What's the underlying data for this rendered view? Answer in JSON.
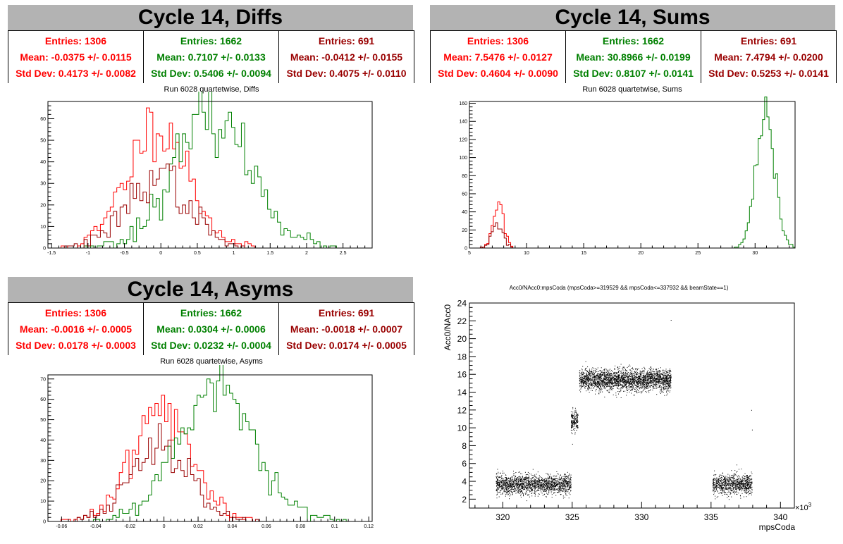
{
  "colors": {
    "red": "#ff0000",
    "green": "#008000",
    "darkred": "#990000",
    "title_bg": "#b3b3b3"
  },
  "panels": {
    "diffs": {
      "title": "Cycle 14, Diffs",
      "subtitle": "Run 6028 quartetwise, Diffs",
      "stats": [
        {
          "entries": "Entries: 1306",
          "mean": "Mean: -0.0375 +/- 0.0115",
          "std": "Std Dev: 0.4173 +/- 0.0082"
        },
        {
          "entries": "Entries: 1662",
          "mean": "Mean: 0.7107 +/- 0.0133",
          "std": "Std Dev: 0.5406 +/- 0.0094"
        },
        {
          "entries": "Entries: 691",
          "mean": "Mean: -0.0412 +/- 0.0155",
          "std": "Std Dev: 0.4075 +/- 0.0110"
        }
      ]
    },
    "sums": {
      "title": "Cycle 14, Sums",
      "subtitle": "Run 6028 quartetwise, Sums",
      "stats": [
        {
          "entries": "Entries: 1306",
          "mean": "Mean: 7.5476 +/- 0.0127",
          "std": "Std Dev: 0.4604 +/- 0.0090"
        },
        {
          "entries": "Entries: 1662",
          "mean": "Mean: 30.8966 +/- 0.0199",
          "std": "Std Dev: 0.8107 +/- 0.0141"
        },
        {
          "entries": "Entries: 691",
          "mean": "Mean: 7.4794 +/- 0.0200",
          "std": "Std Dev: 0.5253 +/- 0.0141"
        }
      ]
    },
    "asyms": {
      "title": "Cycle 14, Asyms",
      "subtitle": "Run 6028 quartetwise, Asyms",
      "stats": [
        {
          "entries": "Entries: 1306",
          "mean": "Mean: -0.0016 +/- 0.0005",
          "std": "Std Dev: 0.0178 +/- 0.0003"
        },
        {
          "entries": "Entries: 1662",
          "mean": "Mean: 0.0304 +/- 0.0006",
          "std": "Std Dev: 0.0232 +/- 0.0004"
        },
        {
          "entries": "Entries: 691",
          "mean": "Mean: -0.0018 +/- 0.0007",
          "std": "Std Dev: 0.0174 +/- 0.0005"
        }
      ]
    },
    "scatter": {
      "title": "Acc0/NAcc0:mpsCoda (mpsCoda>=319529 && mpsCoda<=337932 && beamState==1)",
      "ylabel": "Acc0/NAcc0",
      "xlabel": "mpsCoda",
      "xexp": "×10",
      "xexp_sup": "3"
    }
  },
  "chart_data": [
    {
      "id": "diffs",
      "type": "histogram",
      "title": "Run 6028 quartetwise, Diffs",
      "xlim": [
        -1.55,
        2.9
      ],
      "ylim": [
        0,
        68
      ],
      "xticks": [
        -1.5,
        -1,
        -0.5,
        0,
        0.5,
        1,
        1.5,
        2,
        2.5
      ],
      "xticklabels": [
        "-1.5",
        "-1",
        "-0.5",
        "0",
        "0.5",
        "1",
        "1.5",
        "2",
        "2.5"
      ],
      "yticks": [
        0,
        10,
        20,
        30,
        40,
        50,
        60
      ],
      "series": [
        {
          "color": "red",
          "dist": "gauss",
          "mean": -0.0375,
          "sigma": 0.4173,
          "peak": 58,
          "bin": 0.045,
          "seed": 11
        },
        {
          "color": "green",
          "dist": "gauss",
          "mean": 0.7107,
          "sigma": 0.5406,
          "peak": 60,
          "bin": 0.045,
          "seed": 23
        },
        {
          "color": "darkred",
          "dist": "gauss",
          "mean": -0.0412,
          "sigma": 0.4075,
          "peak": 34,
          "bin": 0.045,
          "seed": 37
        }
      ]
    },
    {
      "id": "sums",
      "type": "histogram",
      "title": "Run 6028 quartetwise, Sums",
      "xlim": [
        5,
        33.5
      ],
      "ylim": [
        0,
        162
      ],
      "xticks": [
        5,
        10,
        15,
        20,
        25,
        30
      ],
      "xticklabels": [
        "5",
        "10",
        "15",
        "20",
        "25",
        "30"
      ],
      "yticks": [
        0,
        20,
        40,
        60,
        80,
        100,
        120,
        140,
        160
      ],
      "series": [
        {
          "color": "red",
          "dist": "gauss",
          "mean": 7.5476,
          "sigma": 0.4604,
          "peak": 52,
          "bin": 0.19,
          "seed": 5
        },
        {
          "color": "green",
          "dist": "gauss",
          "mean": 30.8966,
          "sigma": 0.8107,
          "peak": 150,
          "bin": 0.19,
          "seed": 9
        },
        {
          "color": "darkred",
          "dist": "gauss",
          "mean": 7.4794,
          "sigma": 0.5253,
          "peak": 24,
          "bin": 0.19,
          "seed": 13
        }
      ]
    },
    {
      "id": "asyms",
      "type": "histogram",
      "title": "Run 6028 quartetwise, Asyms",
      "xlim": [
        -0.068,
        0.122
      ],
      "ylim": [
        0,
        72
      ],
      "xticks": [
        -0.06,
        -0.04,
        -0.02,
        0,
        0.02,
        0.04,
        0.06,
        0.08,
        0.1,
        0.12
      ],
      "xticklabels": [
        "-0.06",
        "-0.04",
        "-0.02",
        "0",
        "0.02",
        "0.04",
        "0.06",
        "0.08",
        "0.1",
        "0.12"
      ],
      "yticks": [
        0,
        10,
        20,
        30,
        40,
        50,
        60,
        70
      ],
      "series": [
        {
          "color": "red",
          "dist": "gauss",
          "mean": -0.0016,
          "sigma": 0.0178,
          "peak": 54,
          "bin": 0.0019,
          "seed": 41
        },
        {
          "color": "green",
          "dist": "gauss",
          "mean": 0.0304,
          "sigma": 0.0232,
          "peak": 64,
          "bin": 0.0019,
          "seed": 53
        },
        {
          "color": "darkred",
          "dist": "gauss",
          "mean": -0.0018,
          "sigma": 0.0174,
          "peak": 36,
          "bin": 0.0019,
          "seed": 67
        }
      ]
    },
    {
      "id": "scatter",
      "type": "scatter",
      "title": "Acc0/NAcc0:mpsCoda (mpsCoda>=319529 && mpsCoda<=337932 && beamState==1)",
      "xlabel": "mpsCoda",
      "ylabel": "Acc0/NAcc0",
      "xlim": [
        317.6,
        341.0
      ],
      "ylim": [
        1.0,
        24.0
      ],
      "xticks": [
        320,
        325,
        330,
        335,
        340
      ],
      "xticklabels": [
        "320",
        "325",
        "330",
        "335",
        "340"
      ],
      "yticks": [
        2,
        4,
        6,
        8,
        10,
        12,
        14,
        16,
        18,
        20,
        22,
        24
      ],
      "clusters": [
        {
          "x": [
            319.5,
            324.9
          ],
          "y": 3.7,
          "spread": 0.55,
          "n": 1700
        },
        {
          "x": [
            324.9,
            325.4
          ],
          "y": 10.8,
          "spread": 0.6,
          "n": 180
        },
        {
          "x": [
            325.5,
            332.1
          ],
          "y": 15.4,
          "spread": 0.6,
          "n": 2600
        },
        {
          "x": [
            335.1,
            337.95
          ],
          "y": 3.7,
          "spread": 0.55,
          "n": 900
        }
      ]
    }
  ]
}
